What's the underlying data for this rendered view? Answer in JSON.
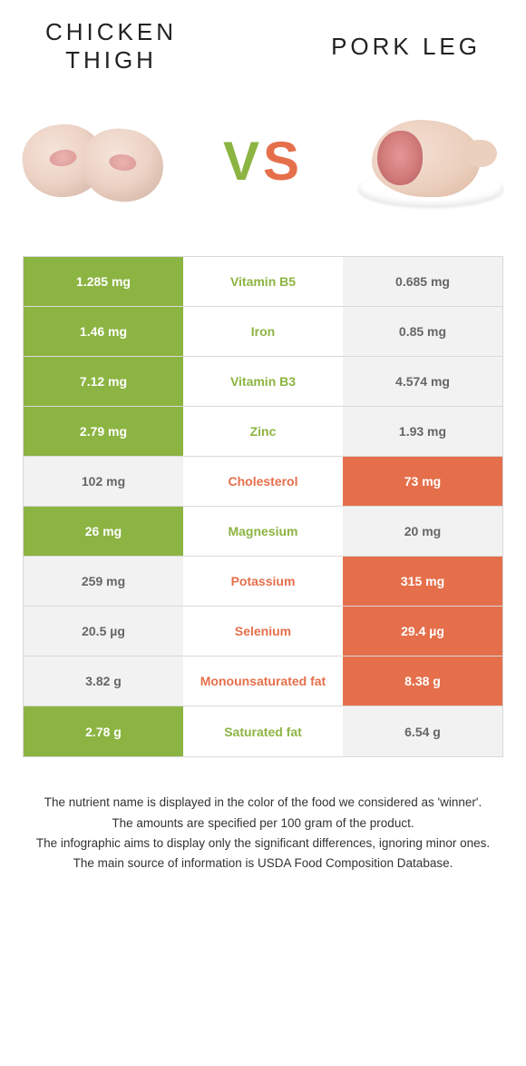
{
  "colors": {
    "green": "#8cb442",
    "orange": "#e56f4b",
    "gray_bg": "#f2f2f2",
    "gray_text": "#666666",
    "white": "#ffffff",
    "border": "#d9d9d9",
    "text": "#333333"
  },
  "header": {
    "left": "CHICKEN\nTHIGH",
    "right": "PORK LEG"
  },
  "vs": {
    "v": "V",
    "s": "S"
  },
  "rows": [
    {
      "left": "1.285 mg",
      "mid": "Vitamin B5",
      "right": "0.685 mg",
      "winner": "left"
    },
    {
      "left": "1.46 mg",
      "mid": "Iron",
      "right": "0.85 mg",
      "winner": "left"
    },
    {
      "left": "7.12 mg",
      "mid": "Vitamin B3",
      "right": "4.574 mg",
      "winner": "left"
    },
    {
      "left": "2.79 mg",
      "mid": "Zinc",
      "right": "1.93 mg",
      "winner": "left"
    },
    {
      "left": "102 mg",
      "mid": "Cholesterol",
      "right": "73 mg",
      "winner": "right"
    },
    {
      "left": "26 mg",
      "mid": "Magnesium",
      "right": "20 mg",
      "winner": "left"
    },
    {
      "left": "259 mg",
      "mid": "Potassium",
      "right": "315 mg",
      "winner": "right"
    },
    {
      "left": "20.5 µg",
      "mid": "Selenium",
      "right": "29.4 µg",
      "winner": "right"
    },
    {
      "left": "3.82 g",
      "mid": "Monounsaturated fat",
      "right": "8.38 g",
      "winner": "right"
    },
    {
      "left": "2.78 g",
      "mid": "Saturated fat",
      "right": "6.54 g",
      "winner": "left"
    }
  ],
  "footer": {
    "l1": "The nutrient name is displayed in the color of the food we considered as 'winner'.",
    "l2": "The amounts are specified per 100 gram of the product.",
    "l3": "The infographic aims to display only the significant differences, ignoring minor ones.",
    "l4": "The main source of information is USDA Food Composition Database."
  }
}
